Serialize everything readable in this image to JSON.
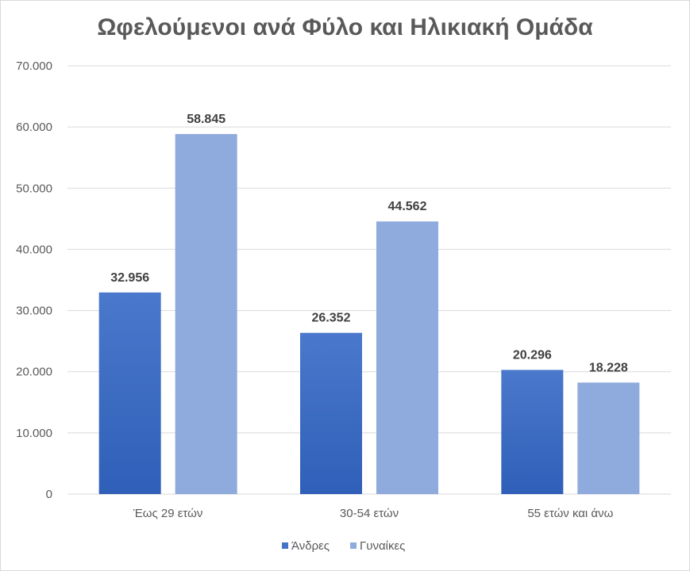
{
  "chart_data": {
    "type": "bar",
    "title": "Ωφελούμενοι ανά Φύλο και Ηλικιακή Ομάδα",
    "categories": [
      "Έως 29 ετών",
      "30-54 ετών",
      "55 ετών και άνω"
    ],
    "series": [
      {
        "name": "Άνδρες",
        "values": [
          32956,
          26352,
          20296
        ],
        "labels": [
          "32.956",
          "26.352",
          "20.296"
        ],
        "color": "#4472c4"
      },
      {
        "name": "Γυναίκες",
        "values": [
          58845,
          44562,
          18228
        ],
        "labels": [
          "58.845",
          "44.562",
          "18.228"
        ],
        "color": "#8faadc"
      }
    ],
    "ylim": [
      0,
      70000
    ],
    "yticks": [
      0,
      10000,
      20000,
      30000,
      40000,
      50000,
      60000,
      70000
    ],
    "ytick_labels": [
      "0",
      "10.000",
      "20.000",
      "30.000",
      "40.000",
      "50.000",
      "60.000",
      "70.000"
    ],
    "grid": true,
    "legend_position": "bottom"
  }
}
